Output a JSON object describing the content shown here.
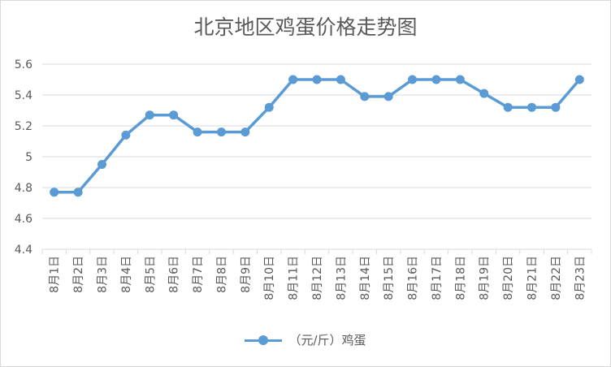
{
  "chart_data": {
    "type": "line",
    "title": "北京地区鸡蛋价格走势图",
    "categories": [
      "8月1日",
      "8月2日",
      "8月3日",
      "8月4日",
      "8月5日",
      "8月6日",
      "8月7日",
      "8月8日",
      "8月9日",
      "8月10日",
      "8月11日",
      "8月12日",
      "8月13日",
      "8月14日",
      "8月15日",
      "8月16日",
      "8月17日",
      "8月18日",
      "8月19日",
      "8月20日",
      "8月21日",
      "8月22日",
      "8月23日"
    ],
    "series": [
      {
        "name": "（元/斤）鸡蛋",
        "values": [
          4.77,
          4.77,
          4.95,
          5.14,
          5.27,
          5.27,
          5.16,
          5.16,
          5.16,
          5.32,
          5.5,
          5.5,
          5.5,
          5.39,
          5.39,
          5.5,
          5.5,
          5.5,
          5.41,
          5.32,
          5.32,
          5.32,
          5.5
        ]
      }
    ],
    "ylim": [
      4.4,
      5.6
    ],
    "yticks": [
      "4.4",
      "4.6",
      "4.8",
      "5",
      "5.2",
      "5.4",
      "5.6"
    ],
    "grid": true,
    "legend_position": "bottom",
    "colors": {
      "series": "#5b9bd5",
      "grid": "#d9d9d9",
      "text": "#595959"
    }
  }
}
